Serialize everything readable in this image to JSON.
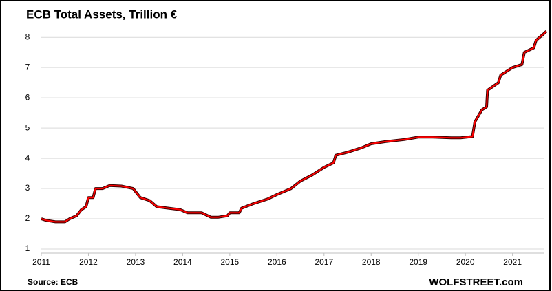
{
  "chart_data": {
    "type": "line",
    "title": "ECB Total Assets, Trillion €",
    "source": "Source: ECB",
    "credit": "WOLFSTREET.com",
    "xlim": [
      2011,
      2021.75
    ],
    "xticks": [
      2011,
      2012,
      2013,
      2014,
      2015,
      2016,
      2017,
      2018,
      2019,
      2020,
      2021
    ],
    "ylim": [
      1,
      8.3
    ],
    "yticks": [
      1,
      2,
      3,
      4,
      5,
      6,
      7,
      8
    ],
    "grid": true,
    "series": [
      {
        "name": "ECB Total Assets",
        "color": "#ff0000",
        "x": [
          2011.0,
          2011.1,
          2011.3,
          2011.5,
          2011.6,
          2011.75,
          2011.85,
          2011.95,
          2012.0,
          2012.1,
          2012.15,
          2012.3,
          2012.45,
          2012.7,
          2012.95,
          2013.1,
          2013.3,
          2013.45,
          2013.7,
          2013.95,
          2014.1,
          2014.4,
          2014.6,
          2014.75,
          2014.95,
          2015.0,
          2015.2,
          2015.25,
          2015.5,
          2015.8,
          2016.0,
          2016.3,
          2016.5,
          2016.75,
          2017.0,
          2017.2,
          2017.25,
          2017.5,
          2017.8,
          2018.0,
          2018.3,
          2018.7,
          2019.0,
          2019.3,
          2019.7,
          2019.9,
          2020.15,
          2020.2,
          2020.35,
          2020.45,
          2020.47,
          2020.7,
          2020.75,
          2021.0,
          2021.2,
          2021.25,
          2021.45,
          2021.5,
          2021.65,
          2021.72
        ],
        "values": [
          2.0,
          1.95,
          1.9,
          1.9,
          2.0,
          2.1,
          2.3,
          2.4,
          2.7,
          2.7,
          3.0,
          3.0,
          3.1,
          3.08,
          3.0,
          2.7,
          2.6,
          2.4,
          2.35,
          2.3,
          2.2,
          2.2,
          2.05,
          2.05,
          2.1,
          2.2,
          2.2,
          2.35,
          2.5,
          2.65,
          2.8,
          3.0,
          3.25,
          3.45,
          3.7,
          3.85,
          4.1,
          4.2,
          4.35,
          4.48,
          4.55,
          4.62,
          4.7,
          4.7,
          4.68,
          4.68,
          4.72,
          5.2,
          5.6,
          5.7,
          6.25,
          6.5,
          6.75,
          7.0,
          7.1,
          7.5,
          7.65,
          7.9,
          8.1,
          8.2
        ]
      }
    ]
  }
}
